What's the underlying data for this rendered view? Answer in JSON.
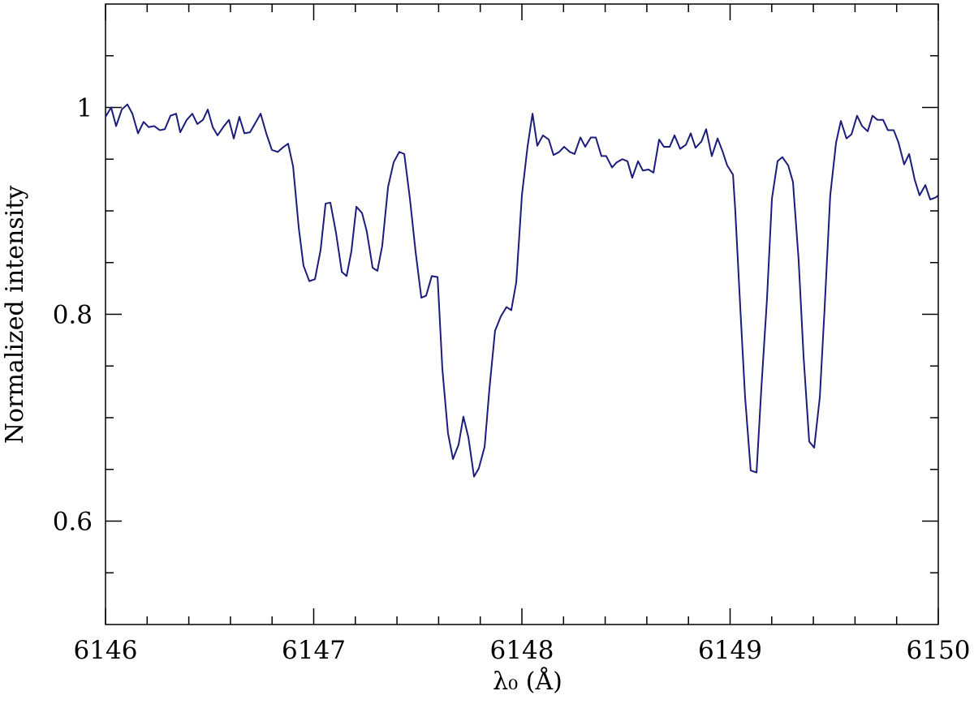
{
  "chart_data": {
    "type": "line",
    "xlabel": "λ₀  (Å)",
    "ylabel": "Normalized intensity",
    "color": "#1c1c7a",
    "xlim": [
      6146,
      6150
    ],
    "xticks": [
      6146,
      6147,
      6148,
      6149,
      6150
    ],
    "xminorticks": [
      6146.2,
      6146.4,
      6146.6,
      6146.8,
      6147.2,
      6147.4,
      6147.6,
      6147.8,
      6148.2,
      6148.4,
      6148.6,
      6148.8,
      6149.2,
      6149.4,
      6149.6,
      6149.8
    ],
    "ylim": [
      0.5,
      1.1
    ],
    "yticks": [
      0.6,
      0.8,
      1
    ],
    "yminorticks": [
      0.55,
      0.65,
      0.7,
      0.75,
      0.85,
      0.9,
      0.95,
      1.05
    ],
    "x": [
      6146.0,
      6146.027,
      6146.051,
      6146.078,
      6146.105,
      6146.129,
      6146.156,
      6146.183,
      6146.207,
      6146.234,
      6146.261,
      6146.285,
      6146.312,
      6146.339,
      6146.359,
      6146.39,
      6146.417,
      6146.441,
      6146.468,
      6146.491,
      6146.515,
      6146.538,
      6146.569,
      6146.593,
      6146.616,
      6146.643,
      6146.667,
      6146.694,
      6146.717,
      6146.745,
      6146.772,
      6146.799,
      6146.827,
      6146.85,
      6146.877,
      6146.901,
      6146.928,
      6146.951,
      6146.979,
      6147.006,
      6147.033,
      6147.057,
      6147.08,
      6147.107,
      6147.135,
      6147.158,
      6147.181,
      6147.205,
      6147.232,
      6147.255,
      6147.283,
      6147.306,
      6147.329,
      6147.357,
      6147.384,
      6147.411,
      6147.435,
      6147.462,
      6147.489,
      6147.517,
      6147.54,
      6147.567,
      6147.595,
      6147.618,
      6147.645,
      6147.669,
      6147.696,
      6147.719,
      6147.743,
      6147.77,
      6147.793,
      6147.821,
      6147.844,
      6147.871,
      6147.899,
      6147.926,
      6147.949,
      6147.973,
      6148.0,
      6148.027,
      6148.051,
      6148.074,
      6148.101,
      6148.129,
      6148.152,
      6148.179,
      6148.203,
      6148.23,
      6148.253,
      6148.281,
      6148.304,
      6148.331,
      6148.355,
      6148.382,
      6148.405,
      6148.433,
      6148.456,
      6148.483,
      6148.507,
      6148.53,
      6148.558,
      6148.581,
      6148.608,
      6148.632,
      6148.659,
      6148.682,
      6148.71,
      6148.733,
      6148.76,
      6148.788,
      6148.811,
      6148.834,
      6148.862,
      6148.885,
      6148.912,
      6148.94,
      6148.963,
      6148.986,
      6149.014,
      6149.025,
      6149.049,
      6149.072,
      6149.099,
      6149.127,
      6149.15,
      6149.177,
      6149.201,
      6149.228,
      6149.251,
      6149.279,
      6149.302,
      6149.329,
      6149.353,
      6149.38,
      6149.404,
      6149.431,
      6149.454,
      6149.481,
      6149.509,
      6149.532,
      6149.559,
      6149.583,
      6149.61,
      6149.634,
      6149.661,
      6149.684,
      6149.708,
      6149.735,
      6149.758,
      6149.786,
      6149.809,
      6149.836,
      6149.86,
      6149.887,
      6149.91,
      6149.938,
      6149.961,
      6149.988,
      6150.0
    ],
    "values": [
      0.991,
      1.0,
      0.982,
      0.998,
      1.003,
      0.994,
      0.975,
      0.986,
      0.981,
      0.982,
      0.978,
      0.979,
      0.992,
      0.994,
      0.976,
      0.988,
      0.994,
      0.984,
      0.988,
      0.998,
      0.981,
      0.973,
      0.982,
      0.988,
      0.97,
      0.991,
      0.975,
      0.976,
      0.984,
      0.994,
      0.975,
      0.959,
      0.957,
      0.961,
      0.965,
      0.943,
      0.884,
      0.847,
      0.832,
      0.834,
      0.862,
      0.907,
      0.908,
      0.879,
      0.841,
      0.837,
      0.861,
      0.904,
      0.898,
      0.88,
      0.845,
      0.842,
      0.866,
      0.923,
      0.947,
      0.957,
      0.955,
      0.912,
      0.861,
      0.816,
      0.818,
      0.837,
      0.836,
      0.747,
      0.685,
      0.66,
      0.674,
      0.701,
      0.681,
      0.643,
      0.651,
      0.672,
      0.728,
      0.784,
      0.798,
      0.807,
      0.804,
      0.831,
      0.915,
      0.962,
      0.994,
      0.963,
      0.973,
      0.969,
      0.954,
      0.957,
      0.962,
      0.957,
      0.955,
      0.971,
      0.962,
      0.971,
      0.971,
      0.953,
      0.953,
      0.942,
      0.947,
      0.95,
      0.948,
      0.932,
      0.948,
      0.939,
      0.94,
      0.937,
      0.969,
      0.962,
      0.962,
      0.973,
      0.96,
      0.964,
      0.975,
      0.961,
      0.967,
      0.979,
      0.953,
      0.97,
      0.958,
      0.944,
      0.935,
      0.9,
      0.806,
      0.72,
      0.649,
      0.647,
      0.728,
      0.814,
      0.912,
      0.948,
      0.952,
      0.944,
      0.928,
      0.853,
      0.759,
      0.677,
      0.671,
      0.72,
      0.806,
      0.915,
      0.966,
      0.987,
      0.97,
      0.974,
      0.992,
      0.982,
      0.977,
      0.992,
      0.988,
      0.988,
      0.978,
      0.978,
      0.966,
      0.945,
      0.955,
      0.93,
      0.915,
      0.925,
      0.911,
      0.913,
      0.915
    ]
  }
}
